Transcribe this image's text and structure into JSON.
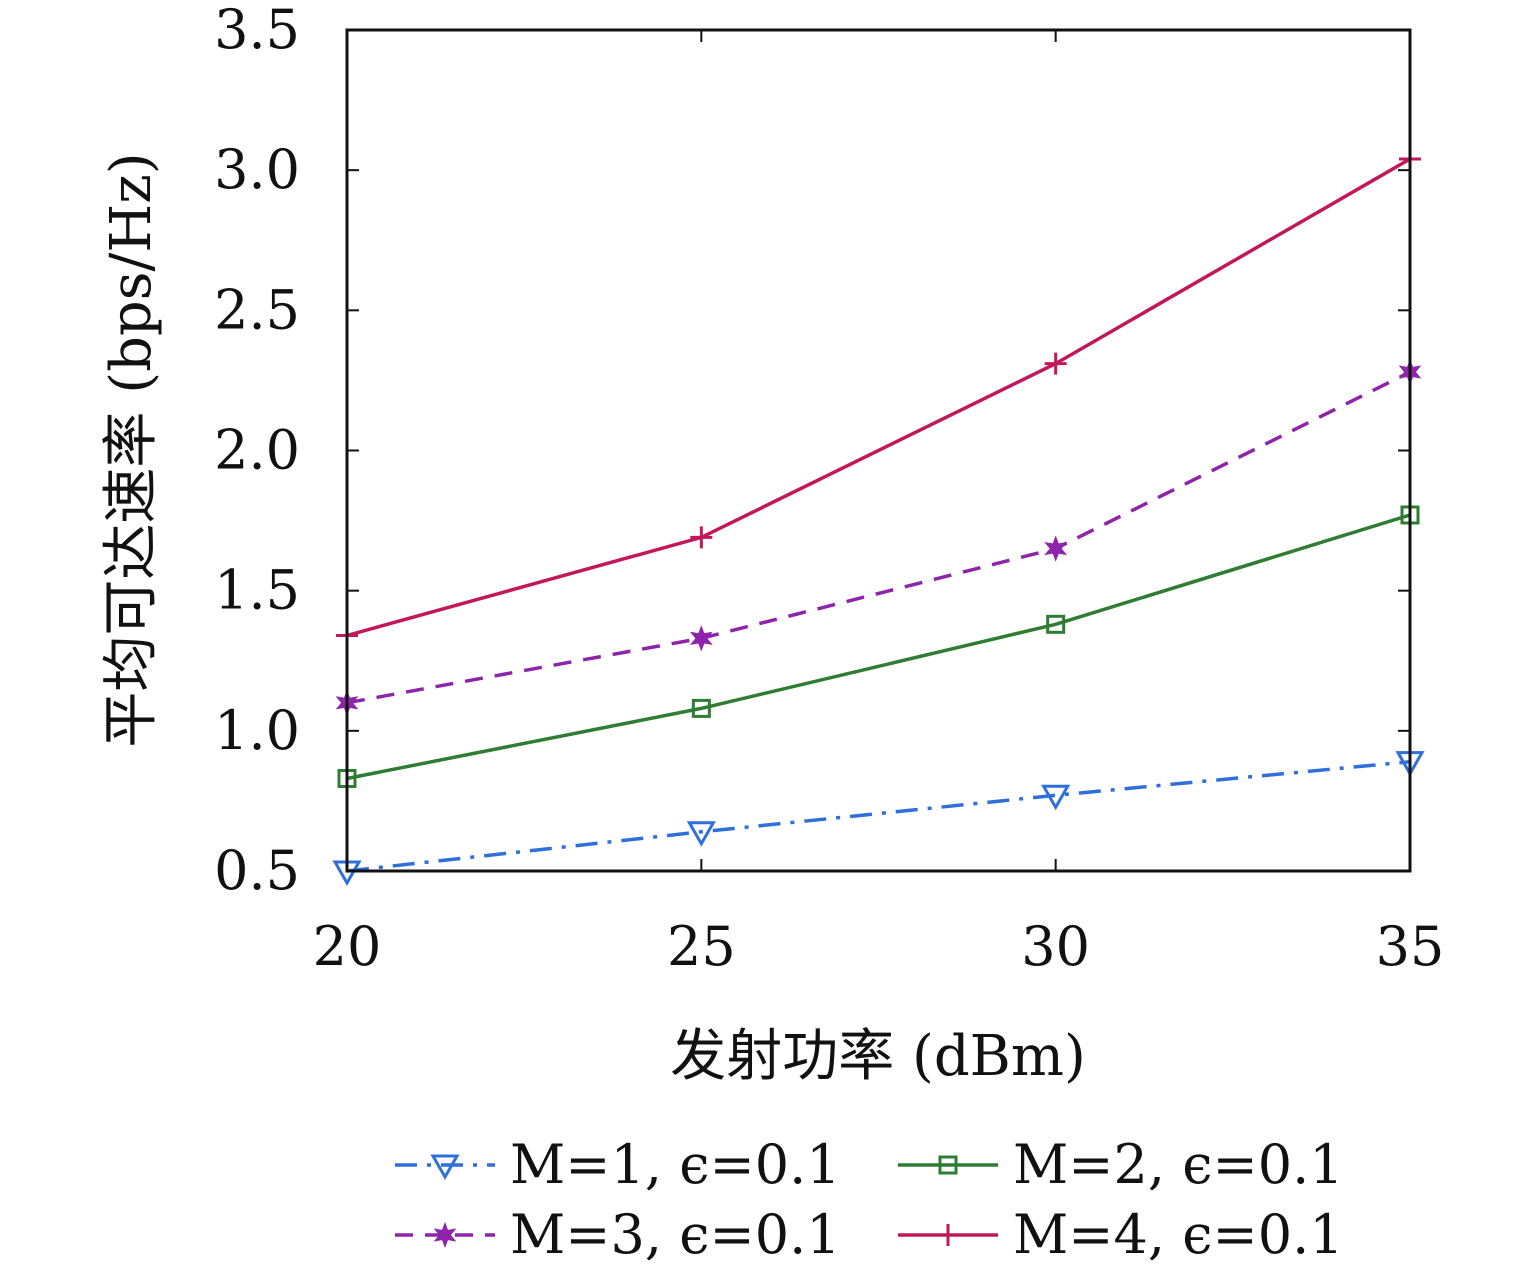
{
  "chart_data": {
    "type": "line",
    "title": "",
    "xlabel": "发射功率 (dBm)",
    "ylabel": "平均可达速率 (bps/Hz)",
    "x": [
      20,
      25,
      30,
      35
    ],
    "xlim": [
      20,
      35
    ],
    "ylim": [
      0.5,
      3.5
    ],
    "xticks": [
      "20",
      "25",
      "30",
      "35"
    ],
    "yticks": [
      "0.5",
      "1.0",
      "1.5",
      "2.0",
      "2.5",
      "3.0",
      "3.5"
    ],
    "grid": false,
    "legend_position": "bottom",
    "series": [
      {
        "name": "M=1, ϵ=0.1",
        "values": [
          0.5,
          0.64,
          0.77,
          0.89
        ],
        "color": "#2f6fdc",
        "dash": "dashdot",
        "marker": "triangle-down"
      },
      {
        "name": "M=2, ϵ=0.1",
        "values": [
          0.83,
          1.08,
          1.38,
          1.77
        ],
        "color": "#2e7d32",
        "dash": "solid",
        "marker": "square"
      },
      {
        "name": "M=3, ϵ=0.1",
        "values": [
          1.1,
          1.33,
          1.65,
          2.28
        ],
        "color": "#8e24aa",
        "dash": "dashed",
        "marker": "star"
      },
      {
        "name": "M=4, ϵ=0.1",
        "values": [
          1.34,
          1.69,
          2.31,
          3.04
        ],
        "color": "#c2185b",
        "dash": "solid",
        "marker": "plus"
      }
    ]
  }
}
